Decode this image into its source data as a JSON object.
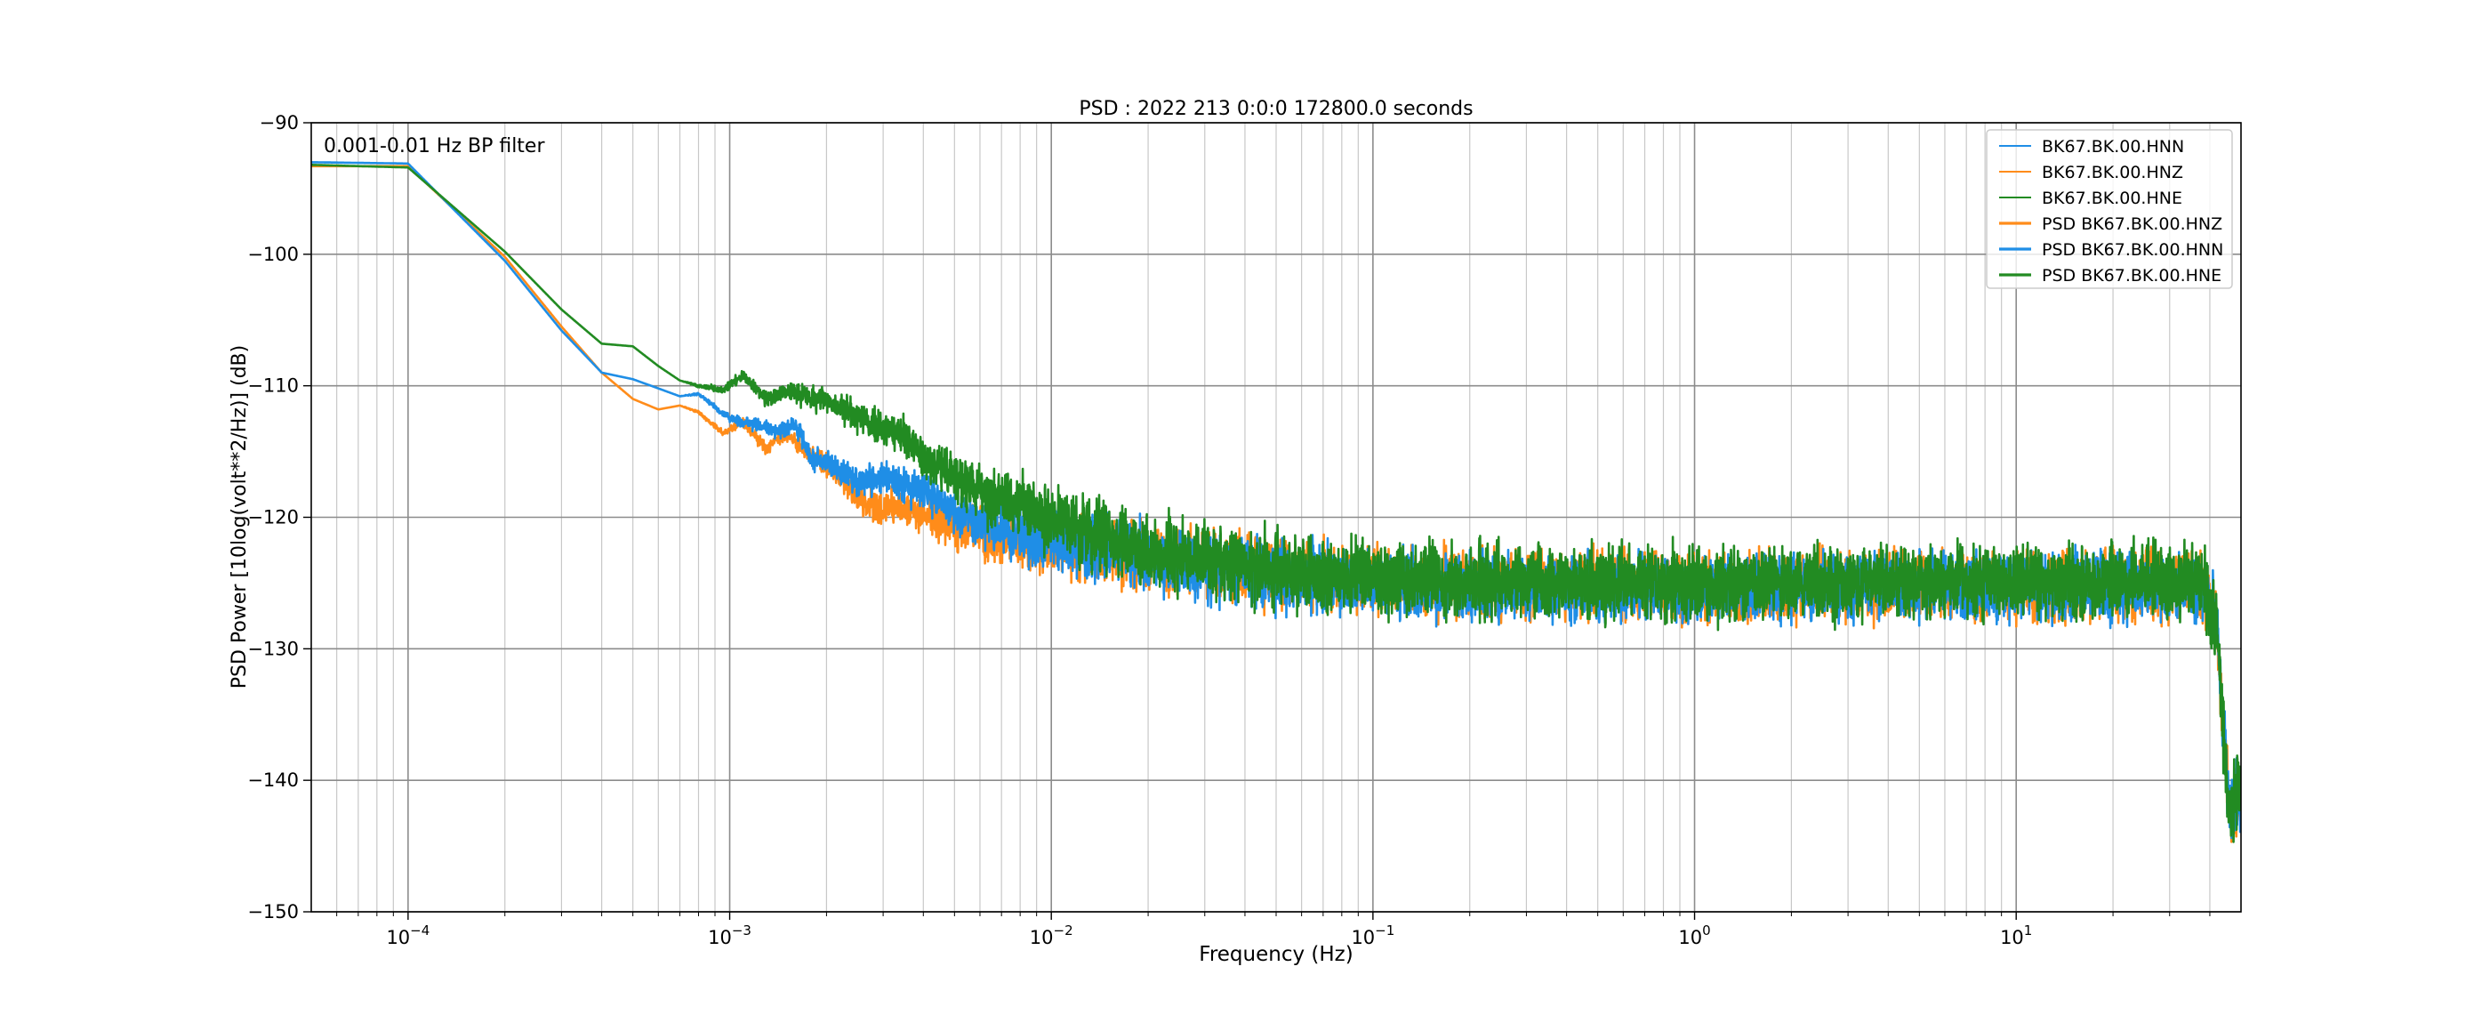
{
  "chart_data": {
    "type": "line",
    "title": "PSD : 2022 213 0:0:0 172800.0 seconds",
    "xlabel": "Frequency (Hz)",
    "ylabel": "PSD Power [10log(volt**2/Hz)] (dB)",
    "annotation": "0.001-0.01 Hz BP filter",
    "x_scale": "log",
    "xlim": [
      5e-05,
      50
    ],
    "ylim": [
      -150,
      -90
    ],
    "grid": true,
    "legend_position": "top-right",
    "x_major_ticks": [
      {
        "value": 0.0001,
        "mantissa": "10",
        "exponent": "−4"
      },
      {
        "value": 0.001,
        "mantissa": "10",
        "exponent": "−3"
      },
      {
        "value": 0.01,
        "mantissa": "10",
        "exponent": "−2"
      },
      {
        "value": 0.1,
        "mantissa": "10",
        "exponent": "−1"
      },
      {
        "value": 1,
        "mantissa": "10",
        "exponent": "0"
      },
      {
        "value": 10,
        "mantissa": "10",
        "exponent": "1"
      }
    ],
    "y_ticks": [
      {
        "value": -90,
        "label": "−90"
      },
      {
        "value": -100,
        "label": "−100"
      },
      {
        "value": -110,
        "label": "−110"
      },
      {
        "value": -120,
        "label": "−120"
      },
      {
        "value": -130,
        "label": "−130"
      },
      {
        "value": -140,
        "label": "−140"
      },
      {
        "value": -150,
        "label": "−150"
      }
    ],
    "colors": {
      "HNN": "#1f8ee6",
      "HNZ": "#ff8c1a",
      "HNE": "#228b22"
    },
    "legend": [
      {
        "label": "BK67.BK.00.HNN",
        "color": "#1f8ee6",
        "thick": false
      },
      {
        "label": "BK67.BK.00.HNZ",
        "color": "#ff8c1a",
        "thick": false
      },
      {
        "label": "BK67.BK.00.HNE",
        "color": "#228b22",
        "thick": false
      },
      {
        "label": "PSD BK67.BK.00.HNZ",
        "color": "#ff8c1a",
        "thick": true
      },
      {
        "label": "PSD BK67.BK.00.HNN",
        "color": "#1f8ee6",
        "thick": true
      },
      {
        "label": "PSD BK67.BK.00.HNE",
        "color": "#228b22",
        "thick": true
      }
    ],
    "series": [
      {
        "name": "PSD BK67.BK.00.HNZ",
        "color": "#ff8c1a",
        "points": [
          [
            5e-05,
            -93.3
          ],
          [
            0.0001,
            -93.3
          ],
          [
            0.0002,
            -100.2
          ],
          [
            0.0003,
            -105.5
          ],
          [
            0.0004,
            -109.0
          ],
          [
            0.0005,
            -111.0
          ],
          [
            0.0006,
            -111.8
          ],
          [
            0.0007,
            -111.5
          ],
          [
            0.0008,
            -112.0
          ],
          [
            0.00095,
            -113.6
          ],
          [
            0.0011,
            -112.8
          ],
          [
            0.0013,
            -114.8
          ],
          [
            0.0015,
            -113.5
          ],
          [
            0.0017,
            -115.0
          ],
          [
            0.002,
            -116.0
          ],
          [
            0.0025,
            -118.5
          ],
          [
            0.003,
            -119.5
          ],
          [
            0.0035,
            -119.0
          ],
          [
            0.004,
            -120.0
          ],
          [
            0.005,
            -120.6
          ],
          [
            0.0065,
            -121.5
          ],
          [
            0.0085,
            -121.8
          ],
          [
            0.01,
            -122.0
          ],
          [
            0.02,
            -123.2
          ],
          [
            0.05,
            -124.2
          ],
          [
            0.1,
            -124.8
          ],
          [
            0.2,
            -125.0
          ],
          [
            0.5,
            -125.2
          ],
          [
            1,
            -125.3
          ],
          [
            2,
            -125.3
          ],
          [
            5,
            -125.2
          ],
          [
            10,
            -125.2
          ],
          [
            20,
            -125.2
          ],
          [
            38,
            -125.3
          ],
          [
            42,
            -128.0
          ],
          [
            44,
            -136.0
          ],
          [
            46,
            -142.5
          ],
          [
            50,
            -141.0
          ]
        ],
        "noise": 1.2
      },
      {
        "name": "PSD BK67.BK.00.HNN",
        "color": "#1f8ee6",
        "points": [
          [
            5e-05,
            -93.0
          ],
          [
            0.0001,
            -93.1
          ],
          [
            0.0002,
            -100.5
          ],
          [
            0.0003,
            -105.8
          ],
          [
            0.0004,
            -109.0
          ],
          [
            0.0005,
            -109.5
          ],
          [
            0.0006,
            -110.2
          ],
          [
            0.0007,
            -110.8
          ],
          [
            0.0008,
            -110.6
          ],
          [
            0.001,
            -112.5
          ],
          [
            0.0012,
            -113.0
          ],
          [
            0.0014,
            -113.4
          ],
          [
            0.0016,
            -113.0
          ],
          [
            0.0018,
            -115.5
          ],
          [
            0.002,
            -115.8
          ],
          [
            0.0025,
            -117.3
          ],
          [
            0.003,
            -117.0
          ],
          [
            0.004,
            -118.0
          ],
          [
            0.005,
            -119.5
          ],
          [
            0.007,
            -121.0
          ],
          [
            0.01,
            -121.8
          ],
          [
            0.02,
            -123.0
          ],
          [
            0.05,
            -124.5
          ],
          [
            0.1,
            -125.0
          ],
          [
            0.2,
            -125.3
          ],
          [
            0.5,
            -125.5
          ],
          [
            1,
            -125.5
          ],
          [
            2,
            -125.4
          ],
          [
            5,
            -125.3
          ],
          [
            10,
            -125.3
          ],
          [
            20,
            -125.2
          ],
          [
            38,
            -125.4
          ],
          [
            42,
            -128.0
          ],
          [
            44,
            -136.0
          ],
          [
            46,
            -142.5
          ],
          [
            50,
            -141.0
          ]
        ],
        "noise": 1.2
      },
      {
        "name": "PSD BK67.BK.00.HNE",
        "color": "#228b22",
        "points": [
          [
            5e-05,
            -93.2
          ],
          [
            0.0001,
            -93.4
          ],
          [
            0.0002,
            -99.8
          ],
          [
            0.0003,
            -104.2
          ],
          [
            0.0004,
            -106.8
          ],
          [
            0.0005,
            -107.0
          ],
          [
            0.0006,
            -108.5
          ],
          [
            0.0007,
            -109.6
          ],
          [
            0.0008,
            -110.0
          ],
          [
            0.00095,
            -110.3
          ],
          [
            0.0011,
            -109.2
          ],
          [
            0.0013,
            -111.0
          ],
          [
            0.0015,
            -110.5
          ],
          [
            0.0017,
            -110.8
          ],
          [
            0.002,
            -111.2
          ],
          [
            0.0025,
            -112.3
          ],
          [
            0.003,
            -113.2
          ],
          [
            0.0035,
            -113.5
          ],
          [
            0.004,
            -115.5
          ],
          [
            0.005,
            -117.0
          ],
          [
            0.0065,
            -118.5
          ],
          [
            0.0085,
            -119.2
          ],
          [
            0.01,
            -120.3
          ],
          [
            0.02,
            -122.5
          ],
          [
            0.05,
            -124.0
          ],
          [
            0.1,
            -124.7
          ],
          [
            0.2,
            -125.0
          ],
          [
            0.5,
            -125.0
          ],
          [
            1,
            -125.0
          ],
          [
            2,
            -125.0
          ],
          [
            5,
            -124.9
          ],
          [
            10,
            -124.9
          ],
          [
            20,
            -124.9
          ],
          [
            38,
            -124.9
          ],
          [
            42,
            -128.0
          ],
          [
            44,
            -136.0
          ],
          [
            46,
            -142.0
          ],
          [
            50,
            -140.5
          ]
        ],
        "noise": 1.3
      }
    ]
  }
}
